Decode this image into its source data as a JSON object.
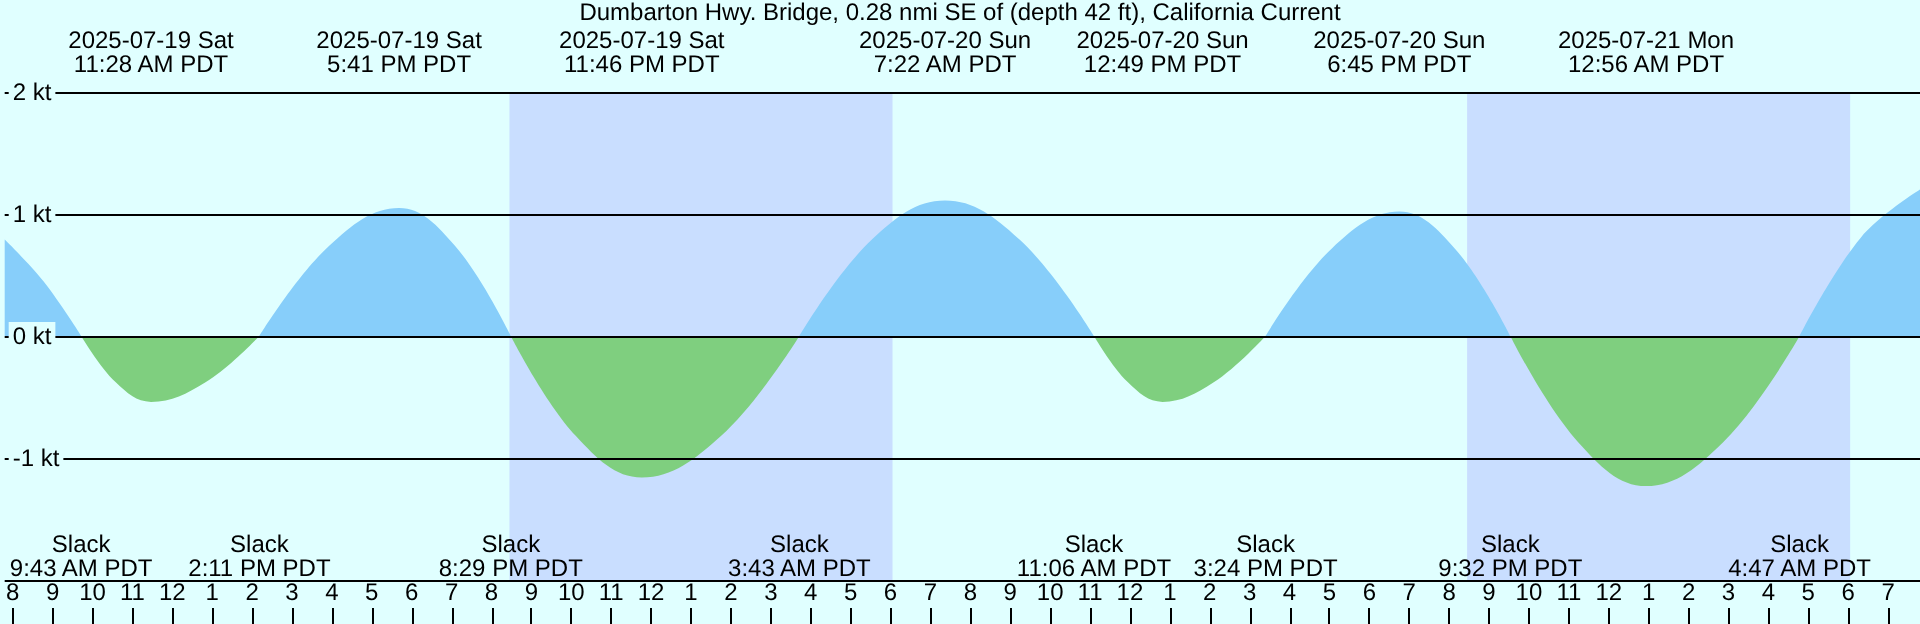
{
  "chart_data": {
    "type": "area",
    "title": "Dumbarton Hwy. Bridge, 0.28 nmi SE of (depth 42 ft), California Current",
    "x": [
      "2025-07-19T07:48",
      "2025-07-19T08:46",
      "2025-07-19T09:43",
      "2025-07-19T10:35",
      "2025-07-19T11:28",
      "2025-07-19T12:50",
      "2025-07-19T14:11",
      "2025-07-19T15:56",
      "2025-07-19T17:41",
      "2025-07-19T19:05",
      "2025-07-19T20:29",
      "2025-07-19T22:07",
      "2025-07-19T23:46",
      "2025-07-20T01:45",
      "2025-07-20T03:43",
      "2025-07-20T05:32",
      "2025-07-20T07:22",
      "2025-07-20T09:14",
      "2025-07-20T11:06",
      "2025-07-20T11:57",
      "2025-07-20T12:49",
      "2025-07-20T14:06",
      "2025-07-20T15:24",
      "2025-07-20T17:04",
      "2025-07-20T18:45",
      "2025-07-20T20:08",
      "2025-07-20T21:32",
      "2025-07-20T23:14",
      "2025-07-21T00:56",
      "2025-07-21T02:52",
      "2025-07-21T04:47",
      "2025-07-21T06:18",
      "2025-07-21T07:48"
    ],
    "series": [
      {
        "color": "#87cefa",
        "values": [
          0.79,
          0.45,
          0,
          null,
          null,
          null,
          0,
          0.74,
          1.05,
          0.74,
          0,
          null,
          null,
          null,
          0,
          0.79,
          1.11,
          0.79,
          0,
          null,
          null,
          null,
          0,
          0.72,
          1.02,
          0.72,
          0,
          null,
          null,
          null,
          0,
          0.8,
          1.2
        ]
      },
      {
        "color": "#7fcf7f",
        "values": [
          null,
          null,
          0,
          -0.38,
          -0.54,
          -0.38,
          0,
          null,
          null,
          null,
          0,
          -0.82,
          -1.16,
          -0.82,
          0,
          null,
          null,
          null,
          0,
          -0.38,
          -0.54,
          -0.38,
          0,
          null,
          null,
          null,
          0,
          -0.87,
          -1.23,
          -0.87,
          0,
          null,
          null
        ]
      }
    ],
    "xlim": [
      "2025-07-19T07:48",
      "2025-07-21T07:48"
    ],
    "xticks": [
      {
        "value": "2025-07-19T08:00",
        "label": "8"
      },
      {
        "value": "2025-07-19T09:00",
        "label": "9"
      },
      {
        "value": "2025-07-19T10:00",
        "label": "10"
      },
      {
        "value": "2025-07-19T11:00",
        "label": "11"
      },
      {
        "value": "2025-07-19T12:00",
        "label": "12"
      },
      {
        "value": "2025-07-19T13:00",
        "label": "1"
      },
      {
        "value": "2025-07-19T14:00",
        "label": "2"
      },
      {
        "value": "2025-07-19T15:00",
        "label": "3"
      },
      {
        "value": "2025-07-19T16:00",
        "label": "4"
      },
      {
        "value": "2025-07-19T17:00",
        "label": "5"
      },
      {
        "value": "2025-07-19T18:00",
        "label": "6"
      },
      {
        "value": "2025-07-19T19:00",
        "label": "7"
      },
      {
        "value": "2025-07-19T20:00",
        "label": "8"
      },
      {
        "value": "2025-07-19T21:00",
        "label": "9"
      },
      {
        "value": "2025-07-19T22:00",
        "label": "10"
      },
      {
        "value": "2025-07-19T23:00",
        "label": "11"
      },
      {
        "value": "2025-07-20T00:00",
        "label": "12"
      },
      {
        "value": "2025-07-20T01:00",
        "label": "1"
      },
      {
        "value": "2025-07-20T02:00",
        "label": "2"
      },
      {
        "value": "2025-07-20T03:00",
        "label": "3"
      },
      {
        "value": "2025-07-20T04:00",
        "label": "4"
      },
      {
        "value": "2025-07-20T05:00",
        "label": "5"
      },
      {
        "value": "2025-07-20T06:00",
        "label": "6"
      },
      {
        "value": "2025-07-20T07:00",
        "label": "7"
      },
      {
        "value": "2025-07-20T08:00",
        "label": "8"
      },
      {
        "value": "2025-07-20T09:00",
        "label": "9"
      },
      {
        "value": "2025-07-20T10:00",
        "label": "10"
      },
      {
        "value": "2025-07-20T11:00",
        "label": "11"
      },
      {
        "value": "2025-07-20T12:00",
        "label": "12"
      },
      {
        "value": "2025-07-20T13:00",
        "label": "1"
      },
      {
        "value": "2025-07-20T14:00",
        "label": "2"
      },
      {
        "value": "2025-07-20T15:00",
        "label": "3"
      },
      {
        "value": "2025-07-20T16:00",
        "label": "4"
      },
      {
        "value": "2025-07-20T17:00",
        "label": "5"
      },
      {
        "value": "2025-07-20T18:00",
        "label": "6"
      },
      {
        "value": "2025-07-20T19:00",
        "label": "7"
      },
      {
        "value": "2025-07-20T20:00",
        "label": "8"
      },
      {
        "value": "2025-07-20T21:00",
        "label": "9"
      },
      {
        "value": "2025-07-20T22:00",
        "label": "10"
      },
      {
        "value": "2025-07-20T23:00",
        "label": "11"
      },
      {
        "value": "2025-07-21T00:00",
        "label": "12"
      },
      {
        "value": "2025-07-21T01:00",
        "label": "1"
      },
      {
        "value": "2025-07-21T02:00",
        "label": "2"
      },
      {
        "value": "2025-07-21T03:00",
        "label": "3"
      },
      {
        "value": "2025-07-21T04:00",
        "label": "4"
      },
      {
        "value": "2025-07-21T05:00",
        "label": "5"
      },
      {
        "value": "2025-07-21T06:00",
        "label": "6"
      },
      {
        "value": "2025-07-21T07:00",
        "label": "7"
      }
    ],
    "ylim": [
      -2,
      2
    ],
    "yticks": [
      {
        "value": 2,
        "label": "2 kt"
      },
      {
        "value": 1,
        "label": "1 kt"
      },
      {
        "value": 0,
        "label": "0 kt"
      },
      {
        "value": -1,
        "label": "-1 kt"
      }
    ],
    "grid": "y",
    "marker": "none",
    "bands": [
      {
        "axis": "x",
        "from": "2025-07-19T20:27",
        "to": "2025-07-20T06:03",
        "color": "#c9deff"
      },
      {
        "axis": "x",
        "from": "2025-07-20T20:27",
        "to": "2025-07-21T06:03",
        "color": "#c9deff"
      }
    ],
    "annotations": [
      "2025-07-19 Sat\n11:28 AM PDT",
      "2025-07-19 Sat\n5:41 PM PDT",
      "2025-07-19 Sat\n11:46 PM PDT",
      "2025-07-20 Sun\n7:22 AM PDT",
      "2025-07-20 Sun\n12:49 PM PDT",
      "2025-07-20 Sun\n6:45 PM PDT",
      "2025-07-21 Mon\n12:56 AM PDT",
      "Slack\n9:43 AM PDT",
      "Slack\n2:11 PM PDT",
      "Slack\n8:29 PM PDT",
      "Slack\n3:43 AM PDT",
      "Slack\n11:06 AM PDT",
      "Slack\n3:24 PM PDT",
      "Slack\n9:32 PM PDT",
      "Slack\n4:47 AM PDT"
    ]
  }
}
